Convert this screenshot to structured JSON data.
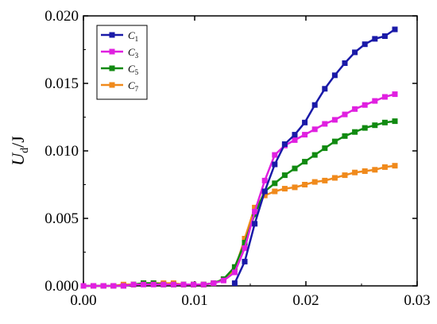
{
  "chart_data": {
    "type": "line",
    "ylabel": "U_d/J",
    "xlabel": "",
    "xlim": [
      0.0,
      0.03
    ],
    "ylim": [
      0.0,
      0.02
    ],
    "x_ticks": [
      "0.00",
      "0.01",
      "0.02",
      "0.03"
    ],
    "y_ticks": [
      "0.000",
      "0.005",
      "0.010",
      "0.015",
      "0.020"
    ],
    "grid": false,
    "legend_position": "top-left",
    "series": [
      {
        "name": "C1",
        "label_main": "C",
        "label_sub": "1",
        "color": "#1a1aa8",
        "marker": "square",
        "x": [
          0.0136,
          0.0145,
          0.0154,
          0.0163,
          0.0172,
          0.0181,
          0.019,
          0.0199,
          0.0208,
          0.0217,
          0.0226,
          0.0235,
          0.0244,
          0.0253,
          0.0262,
          0.0271,
          0.028
        ],
        "y": [
          0.0002,
          0.0018,
          0.0046,
          0.007,
          0.009,
          0.0105,
          0.0112,
          0.0121,
          0.0134,
          0.0146,
          0.0156,
          0.0165,
          0.0173,
          0.0179,
          0.0183,
          0.0185,
          0.019
        ]
      },
      {
        "name": "C3",
        "label_main": "C",
        "label_sub": "3",
        "color": "#e020e0",
        "marker": "square",
        "x": [
          0.0,
          0.0009,
          0.0018,
          0.0027,
          0.0036,
          0.0045,
          0.0054,
          0.0063,
          0.0072,
          0.0081,
          0.009,
          0.0099,
          0.0108,
          0.0117,
          0.0126,
          0.0136,
          0.0145,
          0.0154,
          0.0163,
          0.0172,
          0.0181,
          0.019,
          0.0199,
          0.0208,
          0.0217,
          0.0226,
          0.0235,
          0.0244,
          0.0253,
          0.0262,
          0.0271,
          0.028
        ],
        "y": [
          0.0,
          0.0,
          0.0,
          0.0,
          0.0,
          0.0001,
          0.0001,
          0.0001,
          0.0001,
          0.0001,
          0.0001,
          0.0001,
          0.0001,
          0.0002,
          0.0004,
          0.001,
          0.0028,
          0.0055,
          0.0078,
          0.0097,
          0.0104,
          0.0108,
          0.0112,
          0.0116,
          0.012,
          0.0123,
          0.0127,
          0.0131,
          0.0134,
          0.0137,
          0.014,
          0.0142
        ]
      },
      {
        "name": "C5",
        "label_main": "C",
        "label_sub": "5",
        "color": "#118a11",
        "marker": "square",
        "x": [
          0.0,
          0.0009,
          0.0018,
          0.0027,
          0.0036,
          0.0045,
          0.0054,
          0.0063,
          0.0072,
          0.0081,
          0.009,
          0.0099,
          0.0108,
          0.0117,
          0.0126,
          0.0136,
          0.0145,
          0.0154,
          0.0163,
          0.0172,
          0.0181,
          0.019,
          0.0199,
          0.0208,
          0.0217,
          0.0226,
          0.0235,
          0.0244,
          0.0253,
          0.0262,
          0.0271,
          0.028
        ],
        "y": [
          0.0,
          0.0,
          0.0,
          0.0,
          0.0,
          0.0001,
          0.0002,
          0.0002,
          0.0001,
          0.0001,
          0.0001,
          0.0001,
          0.0001,
          0.0002,
          0.0005,
          0.0014,
          0.0032,
          0.0053,
          0.007,
          0.0076,
          0.0082,
          0.0087,
          0.0092,
          0.0097,
          0.0102,
          0.0107,
          0.0111,
          0.0114,
          0.0117,
          0.0119,
          0.0121,
          0.0122
        ]
      },
      {
        "name": "C7",
        "label_main": "C",
        "label_sub": "7",
        "color": "#f08a1c",
        "marker": "square",
        "x": [
          0.0,
          0.0009,
          0.0018,
          0.0027,
          0.0036,
          0.0045,
          0.0054,
          0.0063,
          0.0072,
          0.0081,
          0.009,
          0.0099,
          0.0108,
          0.0117,
          0.0126,
          0.0136,
          0.0145,
          0.0154,
          0.0163,
          0.0172,
          0.0181,
          0.019,
          0.0199,
          0.0208,
          0.0217,
          0.0226,
          0.0235,
          0.0244,
          0.0253,
          0.0262,
          0.0271,
          0.028
        ],
        "y": [
          0.0,
          0.0,
          0.0,
          0.0,
          0.0001,
          0.0001,
          0.0002,
          0.0002,
          0.0002,
          0.0002,
          0.0001,
          0.0001,
          0.0001,
          0.0002,
          0.0005,
          0.0012,
          0.0035,
          0.0058,
          0.0067,
          0.007,
          0.0072,
          0.0073,
          0.0075,
          0.0077,
          0.0078,
          0.008,
          0.0082,
          0.0084,
          0.0085,
          0.0086,
          0.0088,
          0.0089
        ]
      }
    ]
  }
}
